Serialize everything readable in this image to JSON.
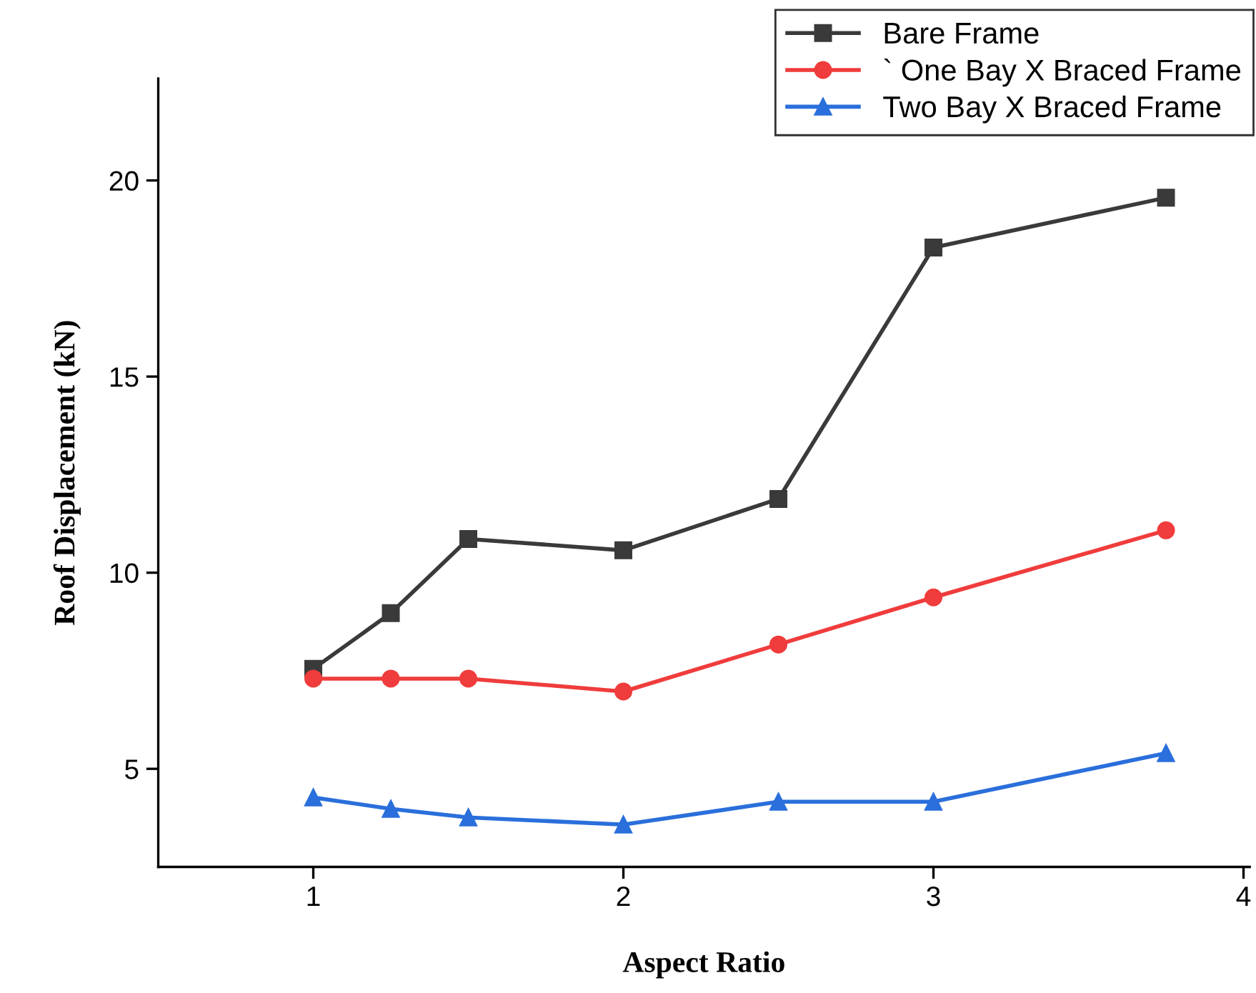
{
  "chart_data": {
    "type": "line",
    "xlabel": "Aspect Ratio",
    "ylabel": "Roof Displacement (kN)",
    "x": [
      1,
      1.25,
      1.5,
      2,
      2.5,
      3,
      3.75
    ],
    "series": [
      {
        "name": "Bare Frame",
        "color": "#3a3a3a",
        "marker": "square",
        "values": [
          7.55,
          8.97,
          10.86,
          10.57,
          11.88,
          18.29,
          19.56
        ]
      },
      {
        "name": "` One Bay X Braced Frame",
        "color": "#f03c3c",
        "marker": "circle",
        "values": [
          7.3,
          7.3,
          7.3,
          6.97,
          8.17,
          9.37,
          11.08
        ]
      },
      {
        "name": "Two Bay X Braced Frame",
        "color": "#2a6fdb",
        "marker": "triangle",
        "values": [
          4.27,
          3.98,
          3.76,
          3.58,
          4.16,
          4.16,
          5.4
        ]
      }
    ],
    "xlim": [
      0.5,
      4.02
    ],
    "ylim": [
      2.5,
      22.6
    ],
    "xticks": [
      1,
      2,
      3,
      4
    ],
    "yticks": [
      5,
      10,
      15,
      20
    ],
    "grid": false,
    "legend": "top right",
    "line_style": "solid"
  }
}
